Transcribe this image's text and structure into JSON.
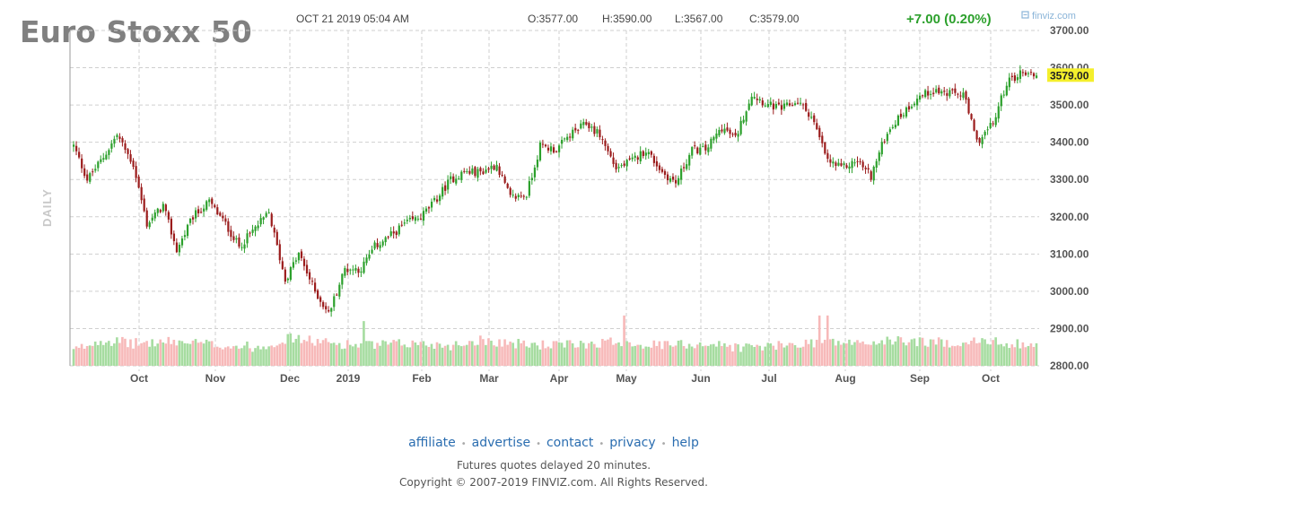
{
  "header": {
    "title": "Euro Stoxx 50",
    "datetime": "OCT 21 2019 05:04 AM",
    "open": "O:3577.00",
    "high": "H:3590.00",
    "low": "L:3567.00",
    "close": "C:3579.00",
    "change": "+7.00 (0.20%)",
    "brand": "finviz.com",
    "timeframe": "DAILY",
    "last_label": "3579.00"
  },
  "colors": {
    "up": "#2ca02c",
    "down": "#9b1c1c",
    "vol_up": "#a6dca0",
    "vol_down": "#f7b9b9",
    "last_bg": "#f4ef2c"
  },
  "chart_data": {
    "type": "candlestick",
    "ylim": [
      2800,
      3700
    ],
    "y_ticks": [
      "3700.00",
      "3600.00",
      "3500.00",
      "3400.00",
      "3300.00",
      "3200.00",
      "3100.00",
      "3000.00",
      "2900.00",
      "2800.00"
    ],
    "x_ticks": [
      "Oct",
      "Nov",
      "Dec",
      "2019",
      "Feb",
      "Mar",
      "Apr",
      "May",
      "Jun",
      "Jul",
      "Aug",
      "Sep",
      "Oct"
    ],
    "last_value": 3579,
    "anchors": [
      [
        0,
        3390
      ],
      [
        5,
        3300
      ],
      [
        11,
        3360
      ],
      [
        16,
        3420
      ],
      [
        22,
        3340
      ],
      [
        27,
        3180
      ],
      [
        33,
        3230
      ],
      [
        38,
        3110
      ],
      [
        44,
        3200
      ],
      [
        50,
        3240
      ],
      [
        56,
        3180
      ],
      [
        61,
        3120
      ],
      [
        67,
        3170
      ],
      [
        72,
        3210
      ],
      [
        78,
        3030
      ],
      [
        83,
        3100
      ],
      [
        89,
        3000
      ],
      [
        94,
        2940
      ],
      [
        100,
        3060
      ],
      [
        106,
        3060
      ],
      [
        111,
        3120
      ],
      [
        117,
        3150
      ],
      [
        122,
        3180
      ],
      [
        128,
        3200
      ],
      [
        133,
        3240
      ],
      [
        139,
        3300
      ],
      [
        144,
        3320
      ],
      [
        150,
        3320
      ],
      [
        156,
        3340
      ],
      [
        161,
        3250
      ],
      [
        167,
        3260
      ],
      [
        172,
        3390
      ],
      [
        178,
        3380
      ],
      [
        183,
        3420
      ],
      [
        189,
        3450
      ],
      [
        194,
        3420
      ],
      [
        200,
        3330
      ],
      [
        206,
        3350
      ],
      [
        211,
        3380
      ],
      [
        217,
        3320
      ],
      [
        222,
        3290
      ],
      [
        228,
        3380
      ],
      [
        233,
        3380
      ],
      [
        239,
        3440
      ],
      [
        244,
        3410
      ],
      [
        250,
        3530
      ],
      [
        256,
        3500
      ],
      [
        261,
        3490
      ],
      [
        267,
        3510
      ],
      [
        272,
        3470
      ],
      [
        278,
        3350
      ],
      [
        283,
        3330
      ],
      [
        289,
        3350
      ],
      [
        294,
        3310
      ],
      [
        300,
        3430
      ],
      [
        306,
        3480
      ],
      [
        311,
        3520
      ],
      [
        317,
        3540
      ],
      [
        322,
        3530
      ],
      [
        328,
        3530
      ],
      [
        333,
        3400
      ],
      [
        339,
        3450
      ],
      [
        344,
        3560
      ],
      [
        350,
        3590
      ],
      [
        355,
        3579
      ]
    ],
    "volume_anchors": [
      [
        0,
        2840
      ],
      [
        10,
        2870
      ],
      [
        22,
        2860
      ],
      [
        38,
        2865
      ],
      [
        55,
        2855
      ],
      [
        68,
        2850
      ],
      [
        80,
        2875
      ],
      [
        95,
        2860
      ],
      [
        110,
        2855
      ],
      [
        125,
        2860
      ],
      [
        140,
        2855
      ],
      [
        150,
        2870
      ],
      [
        165,
        2858
      ],
      [
        180,
        2855
      ],
      [
        200,
        2865
      ],
      [
        215,
        2855
      ],
      [
        233,
        2860
      ],
      [
        245,
        2850
      ],
      [
        260,
        2853
      ],
      [
        275,
        2865
      ],
      [
        290,
        2860
      ],
      [
        305,
        2868
      ],
      [
        320,
        2862
      ],
      [
        335,
        2865
      ],
      [
        355,
        2858
      ]
    ]
  },
  "footer": {
    "links": [
      {
        "id": "affiliate",
        "label": "affiliate"
      },
      {
        "id": "advertise",
        "label": "advertise"
      },
      {
        "id": "contact",
        "label": "contact"
      },
      {
        "id": "privacy",
        "label": "privacy"
      },
      {
        "id": "help",
        "label": "help"
      }
    ],
    "note": "Futures quotes delayed 20 minutes.",
    "copyright": "Copyright © 2007-2019 FINVIZ.com. All Rights Reserved."
  }
}
